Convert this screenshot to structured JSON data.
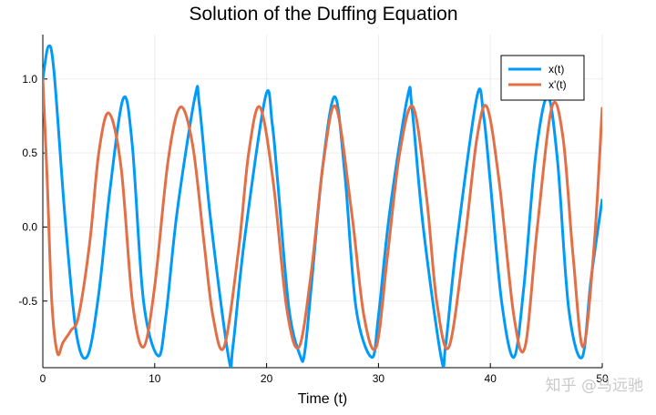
{
  "chart_data": {
    "type": "line",
    "title": "Solution of the Duffing Equation",
    "xlabel": "Time (t)",
    "ylabel": "",
    "xlim": [
      0,
      50
    ],
    "ylim": [
      -0.95,
      1.3
    ],
    "grid": true,
    "legend_position": "top-right",
    "xticks": [
      0,
      10,
      20,
      30,
      40,
      50
    ],
    "xtick_labels": [
      "0",
      "10",
      "20",
      "30",
      "40",
      "50"
    ],
    "yticks": [
      -0.5,
      0.0,
      0.5,
      1.0
    ],
    "ytick_labels": [
      "-0.5",
      "0.0",
      "0.5",
      "1.0"
    ],
    "series": [
      {
        "name": "x(t)",
        "color": "#009AF9",
        "x": [
          0,
          0.5,
          1,
          2,
          3,
          4,
          5,
          6,
          7.2,
          8,
          9,
          10.3,
          11,
          12,
          13.6,
          14,
          15,
          16.6,
          17,
          18,
          19.9,
          20.5,
          21,
          22,
          23,
          23.4,
          24,
          25,
          26.1,
          27,
          28,
          29.4,
          30,
          31,
          32.6,
          33,
          34,
          35.6,
          36,
          37,
          38.8,
          39.4,
          40,
          41,
          42.1,
          43,
          44,
          45.1,
          46,
          47,
          48.2,
          49,
          50
        ],
        "y": [
          1.0,
          1.22,
          1.05,
          0.05,
          -0.72,
          -0.87,
          -0.45,
          0.25,
          0.87,
          0.55,
          -0.5,
          -0.87,
          -0.6,
          0.1,
          0.88,
          0.82,
          0.05,
          -0.88,
          -0.8,
          -0.1,
          0.88,
          0.7,
          0.3,
          -0.55,
          -0.87,
          -0.85,
          -0.4,
          0.4,
          0.88,
          0.35,
          -0.55,
          -0.88,
          -0.6,
          0.1,
          0.88,
          0.8,
          0.0,
          -0.88,
          -0.8,
          -0.1,
          0.88,
          0.75,
          0.3,
          -0.5,
          -0.88,
          -0.4,
          0.45,
          0.88,
          0.45,
          -0.55,
          -0.88,
          -0.35,
          0.19
        ]
      },
      {
        "name": "x'(t)",
        "color": "#E26F46",
        "x": [
          0,
          0.4,
          0.8,
          1.3,
          1.8,
          2.5,
          3.2,
          4.2,
          5.0,
          5.9,
          7,
          8,
          9.0,
          10,
          11.2,
          12.3,
          13.4,
          14.4,
          15.2,
          16.2,
          17.5,
          18.4,
          19.4,
          20.6,
          21.8,
          22.9,
          24.0,
          25.1,
          26.2,
          27.6,
          28.7,
          29.8,
          30.8,
          31.9,
          33.1,
          34.3,
          35.2,
          36.3,
          37.7,
          38.8,
          39.7,
          40.8,
          42.1,
          43.1,
          44.2,
          45.5,
          46.5,
          47.4,
          48.3,
          49.3,
          50
        ],
        "y": [
          1.0,
          0.3,
          -0.5,
          -0.85,
          -0.78,
          -0.7,
          -0.6,
          -0.1,
          0.5,
          0.77,
          0.4,
          -0.5,
          -0.81,
          -0.4,
          0.45,
          0.81,
          0.55,
          -0.1,
          -0.6,
          -0.81,
          -0.15,
          0.5,
          0.81,
          0.3,
          -0.55,
          -0.81,
          -0.3,
          0.45,
          0.81,
          0.1,
          -0.6,
          -0.81,
          -0.2,
          0.5,
          0.81,
          0.2,
          -0.5,
          -0.81,
          -0.1,
          0.6,
          0.81,
          0.3,
          -0.6,
          -0.81,
          0.0,
          0.81,
          0.6,
          -0.2,
          -0.81,
          -0.1,
          0.81
        ]
      }
    ]
  },
  "watermark": "知乎 @马远驰"
}
